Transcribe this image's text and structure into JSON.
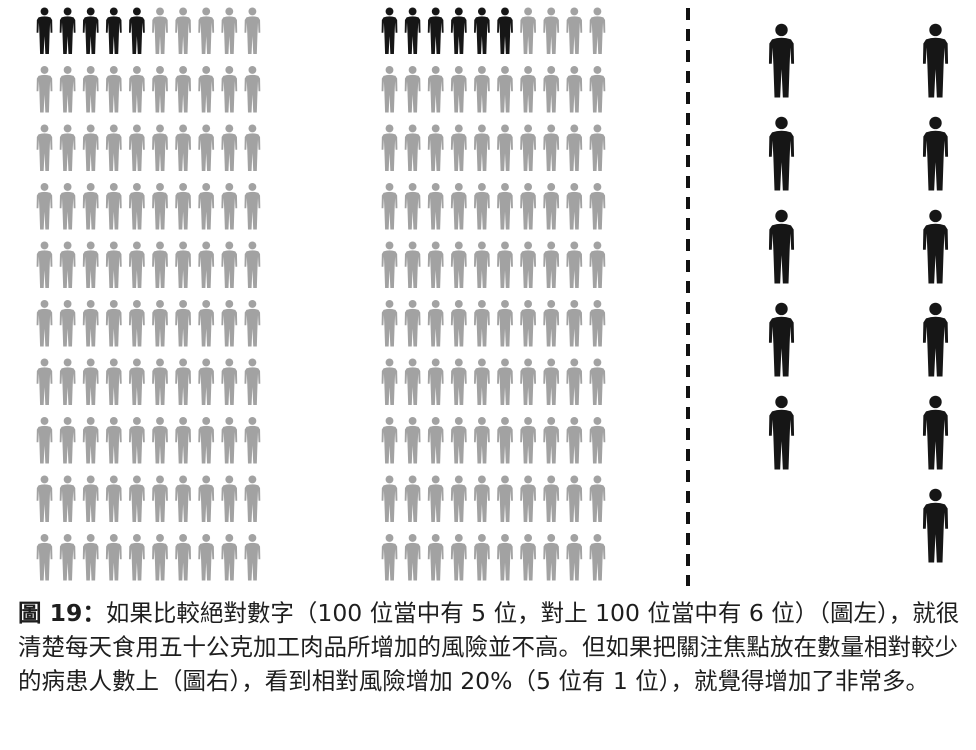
{
  "figure": {
    "left_grid": {
      "rows": 10,
      "cols": 10,
      "highlighted": 5
    },
    "middle_grid": {
      "rows": 10,
      "cols": 10,
      "highlighted": 6
    },
    "right_figures": {
      "left_column": 5,
      "right_column": 6
    },
    "colors": {
      "highlight": "#161616",
      "base": "#a2a2a2",
      "divider": "#111111"
    },
    "icon": "person-silhouette-icon"
  },
  "caption": {
    "label": "圖 19：",
    "text": "如果比較絕對數字（100 位當中有 5 位，對上 100 位當中有 6 位）（圖左），就很清楚每天食用五十公克加工肉品所增加的風險並不高。但如果把關注焦點放在數量相對較少的病患人數上（圖右），看到相對風險增加 20%（5 位有 1 位），就覺得增加了非常多。"
  }
}
